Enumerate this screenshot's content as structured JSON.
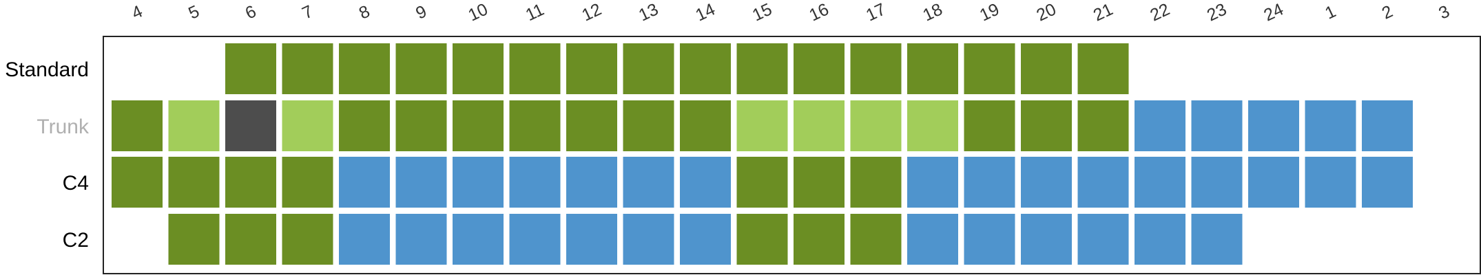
{
  "chart_data": {
    "type": "heatmap",
    "title": "",
    "xlabel": "",
    "ylabel": "",
    "columns": [
      "4",
      "5",
      "6",
      "7",
      "8",
      "9",
      "10",
      "11",
      "12",
      "13",
      "14",
      "15",
      "16",
      "17",
      "18",
      "19",
      "20",
      "21",
      "22",
      "23",
      "24",
      "1",
      "2",
      "3"
    ],
    "rows": [
      {
        "label": "Standard",
        "label_color": "#000000",
        "cells": [
          null,
          null,
          "green",
          "green",
          "green",
          "green",
          "green",
          "green",
          "green",
          "green",
          "green",
          "green",
          "green",
          "green",
          "green",
          "green",
          "green",
          "green",
          null,
          null,
          null,
          null,
          null,
          null
        ]
      },
      {
        "label": "Trunk",
        "label_color": "#b0b0b0",
        "cells": [
          "green",
          "light-green",
          "dark-gray",
          "light-green",
          "green",
          "green",
          "green",
          "green",
          "green",
          "green",
          "green",
          "light-green",
          "light-green",
          "light-green",
          "light-green",
          "green",
          "green",
          "green",
          "blue",
          "blue",
          "blue",
          "blue",
          "blue",
          null
        ]
      },
      {
        "label": "C4",
        "label_color": "#000000",
        "cells": [
          "green",
          "green",
          "green",
          "green",
          "blue",
          "blue",
          "blue",
          "blue",
          "blue",
          "blue",
          "blue",
          "green",
          "green",
          "green",
          "blue",
          "blue",
          "blue",
          "blue",
          "blue",
          "blue",
          "blue",
          "blue",
          "blue",
          null
        ]
      },
      {
        "label": "C2",
        "label_color": "#000000",
        "cells": [
          null,
          "green",
          "green",
          "green",
          "blue",
          "blue",
          "blue",
          "blue",
          "blue",
          "blue",
          "blue",
          "green",
          "green",
          "green",
          "blue",
          "blue",
          "blue",
          "blue",
          "blue",
          "blue",
          null,
          null,
          null,
          null
        ]
      }
    ],
    "colors": {
      "green": "#6b8e23",
      "light-green": "#a2cd5a",
      "dark-gray": "#4d4d4d",
      "blue": "#4f94cd"
    },
    "frame_color": "#222222",
    "grid": false,
    "legend": "none"
  }
}
